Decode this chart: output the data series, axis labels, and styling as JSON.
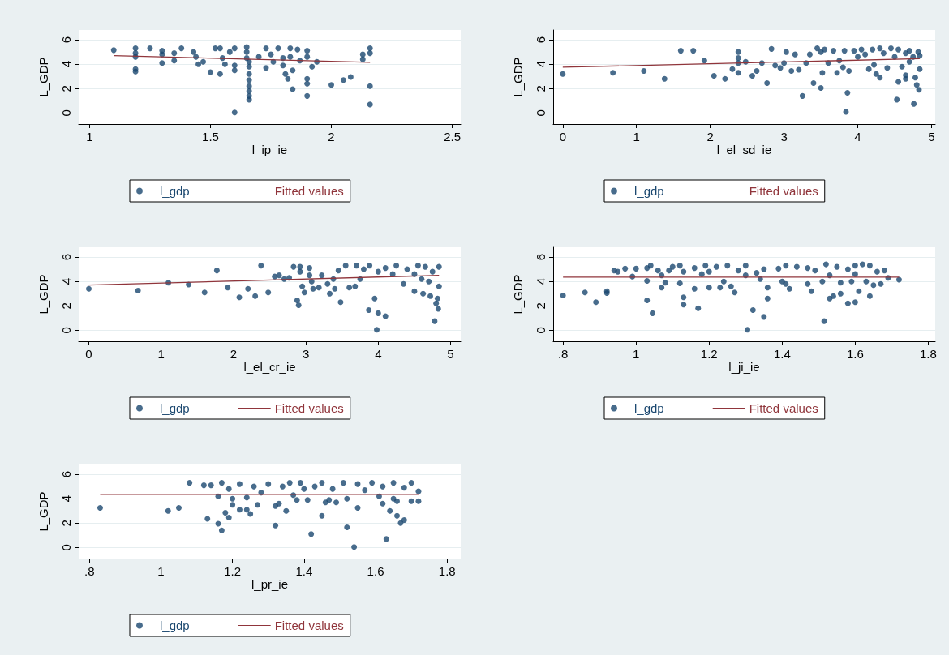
{
  "chart_data": [
    {
      "type": "scatter",
      "xlabel": "l_ip_ie",
      "ylabel": "L_GDP",
      "xlim": [
        0.955,
        2.535
      ],
      "xticks": [
        1,
        1.5,
        2,
        2.5
      ],
      "ylim": [
        -0.9,
        6.8
      ],
      "yticks": [
        0,
        2,
        4,
        6
      ],
      "grid": "y",
      "legend": "bottom",
      "marker": "circle",
      "series": [
        {
          "name": "l_gdp",
          "type": "scatter",
          "color": "#1a476f",
          "x": [
            1.1,
            1.19,
            1.19,
            1.19,
            1.19,
            1.19,
            1.25,
            1.3,
            1.3,
            1.3,
            1.35,
            1.35,
            1.38,
            1.43,
            1.44,
            1.45,
            1.47,
            1.5,
            1.52,
            1.54,
            1.54,
            1.55,
            1.56,
            1.58,
            1.6,
            1.6,
            1.6,
            1.6,
            1.65,
            1.65,
            1.65,
            1.66,
            1.66,
            1.66,
            1.66,
            1.66,
            1.66,
            1.66,
            1.66,
            1.7,
            1.73,
            1.73,
            1.75,
            1.76,
            1.78,
            1.8,
            1.8,
            1.81,
            1.82,
            1.83,
            1.83,
            1.84,
            1.84,
            1.86,
            1.87,
            1.9,
            1.9,
            1.9,
            1.9,
            1.9,
            1.92,
            1.94,
            2.0,
            2.05,
            2.08,
            2.13,
            2.13,
            2.16,
            2.16,
            2.16,
            2.16
          ],
          "values": [
            5.15,
            5.3,
            4.9,
            4.6,
            3.6,
            3.4,
            5.3,
            5.1,
            4.8,
            4.1,
            4.9,
            4.3,
            5.3,
            5.0,
            4.6,
            4.0,
            4.2,
            3.35,
            5.3,
            5.3,
            3.2,
            4.5,
            4.0,
            5.0,
            5.3,
            3.9,
            3.5,
            0.05,
            5.4,
            5.0,
            4.5,
            4.2,
            3.8,
            3.2,
            2.7,
            2.2,
            1.8,
            1.4,
            1.1,
            4.6,
            5.3,
            3.7,
            4.8,
            4.2,
            5.3,
            4.5,
            3.9,
            3.2,
            2.8,
            5.3,
            4.6,
            3.5,
            1.95,
            5.2,
            4.3,
            5.1,
            4.6,
            2.8,
            2.4,
            1.4,
            3.8,
            4.2,
            2.3,
            2.7,
            2.95,
            4.8,
            4.4,
            5.3,
            4.9,
            2.2,
            0.7
          ]
        },
        {
          "name": "Fitted values",
          "type": "line",
          "marker": "none",
          "color": "#90353b",
          "x": [
            1.1,
            2.16
          ],
          "values": [
            4.7,
            4.15
          ]
        }
      ]
    },
    {
      "type": "scatter",
      "xlabel": "l_el_sd_ie",
      "ylabel": "L_GDP",
      "xlim": [
        -0.13,
        5.05
      ],
      "xticks": [
        0,
        1,
        2,
        3,
        4,
        5
      ],
      "ylim": [
        -0.9,
        6.8
      ],
      "yticks": [
        0,
        2,
        4,
        6
      ],
      "grid": "y",
      "legend": "bottom",
      "marker": "circle",
      "series": [
        {
          "name": "l_gdp",
          "type": "scatter",
          "color": "#1a476f",
          "x": [
            0,
            0.68,
            1.1,
            1.38,
            1.6,
            1.77,
            1.92,
            2.05,
            2.2,
            2.3,
            2.38,
            2.38,
            2.38,
            2.38,
            2.48,
            2.57,
            2.63,
            2.7,
            2.77,
            2.83,
            2.88,
            2.95,
            3.0,
            3.03,
            3.1,
            3.15,
            3.2,
            3.25,
            3.3,
            3.35,
            3.4,
            3.45,
            3.5,
            3.5,
            3.52,
            3.55,
            3.6,
            3.67,
            3.72,
            3.75,
            3.8,
            3.82,
            3.84,
            3.86,
            3.88,
            3.95,
            4.0,
            4.05,
            4.1,
            4.15,
            4.2,
            4.22,
            4.25,
            4.3,
            4.3,
            4.35,
            4.4,
            4.45,
            4.5,
            4.53,
            4.55,
            4.55,
            4.6,
            4.65,
            4.65,
            4.65,
            4.7,
            4.7,
            4.75,
            4.76,
            4.78,
            4.8,
            4.82,
            4.83,
            4.84,
            4.84
          ],
          "values": [
            3.2,
            3.3,
            3.45,
            2.8,
            5.1,
            5.1,
            4.3,
            3.05,
            2.8,
            3.6,
            5.0,
            4.5,
            4.1,
            3.3,
            4.2,
            3.05,
            3.45,
            4.1,
            2.45,
            5.25,
            3.9,
            3.7,
            4.1,
            5.0,
            3.45,
            4.8,
            3.55,
            1.4,
            4.1,
            4.8,
            2.45,
            5.3,
            5.0,
            2.05,
            3.3,
            5.2,
            4.1,
            5.1,
            3.3,
            4.3,
            3.75,
            5.1,
            0.1,
            1.65,
            3.45,
            5.1,
            4.6,
            5.2,
            4.8,
            3.6,
            5.2,
            3.95,
            3.2,
            5.3,
            2.9,
            4.9,
            3.7,
            5.3,
            4.6,
            1.1,
            2.55,
            5.2,
            3.8,
            4.9,
            3.1,
            2.8,
            5.1,
            4.2,
            4.6,
            0.75,
            2.9,
            2.3,
            5.0,
            1.9,
            3.6,
            4.7
          ]
        },
        {
          "name": "Fitted values",
          "type": "line",
          "marker": "none",
          "color": "#90353b",
          "x": [
            0,
            4.84
          ],
          "values": [
            3.75,
            4.45
          ]
        }
      ]
    },
    {
      "type": "scatter",
      "xlabel": "l_el_cr_ie",
      "ylabel": "L_GDP",
      "xlim": [
        -0.14,
        5.14
      ],
      "xticks": [
        0,
        1,
        2,
        3,
        4,
        5
      ],
      "ylim": [
        -0.9,
        6.8
      ],
      "yticks": [
        0,
        2,
        4,
        6
      ],
      "grid": "y",
      "legend": "bottom",
      "marker": "circle",
      "series": [
        {
          "name": "l_gdp",
          "type": "scatter",
          "color": "#1a476f",
          "x": [
            0,
            0.68,
            1.1,
            1.38,
            1.6,
            1.77,
            1.92,
            2.08,
            2.2,
            2.3,
            2.38,
            2.48,
            2.57,
            2.63,
            2.7,
            2.77,
            2.83,
            2.88,
            2.9,
            2.92,
            2.92,
            2.95,
            2.98,
            3.05,
            3.05,
            3.08,
            3.1,
            3.18,
            3.22,
            3.3,
            3.33,
            3.38,
            3.4,
            3.48,
            3.45,
            3.55,
            3.6,
            3.68,
            3.7,
            3.75,
            3.8,
            3.87,
            3.88,
            3.95,
            3.98,
            4.0,
            4.0,
            4.1,
            4.1,
            4.2,
            4.25,
            4.35,
            4.4,
            4.5,
            4.5,
            4.55,
            4.6,
            4.62,
            4.65,
            4.7,
            4.72,
            4.75,
            4.78,
            4.8,
            4.82,
            4.83,
            4.84,
            4.84
          ],
          "values": [
            3.4,
            3.25,
            3.9,
            3.75,
            3.1,
            4.9,
            3.5,
            2.7,
            3.4,
            2.8,
            5.3,
            3.1,
            4.4,
            4.5,
            4.2,
            4.3,
            5.2,
            2.45,
            2.05,
            5.2,
            4.8,
            3.6,
            3.1,
            5.1,
            4.5,
            4.0,
            3.4,
            3.5,
            4.5,
            3.8,
            3.0,
            4.2,
            3.4,
            2.3,
            4.9,
            5.3,
            3.5,
            3.6,
            5.3,
            4.2,
            5.0,
            1.65,
            5.3,
            2.6,
            0.05,
            1.4,
            4.8,
            1.15,
            5.1,
            4.6,
            5.3,
            3.8,
            5.0,
            4.6,
            3.2,
            5.3,
            4.2,
            3.0,
            5.2,
            4.0,
            2.8,
            4.8,
            0.75,
            2.2,
            2.6,
            1.75,
            3.6,
            5.2
          ]
        },
        {
          "name": "Fitted values",
          "type": "line",
          "marker": "none",
          "color": "#90353b",
          "x": [
            0,
            4.84
          ],
          "values": [
            3.7,
            4.5
          ]
        }
      ]
    },
    {
      "type": "scatter",
      "xlabel": "l_ji_ie",
      "ylabel": "L_GDP",
      "xlim": [
        0.773,
        1.819
      ],
      "xticks": [
        {
          "value": 0.8,
          "label": ".8"
        },
        1,
        1.2,
        1.4,
        1.6,
        1.8
      ],
      "ylim": [
        -0.9,
        6.8
      ],
      "yticks": [
        0,
        2,
        4,
        6
      ],
      "grid": "y",
      "legend": "bottom",
      "marker": "circle",
      "series": [
        {
          "name": "l_gdp",
          "type": "scatter",
          "color": "#1a476f",
          "x": [
            0.8,
            0.86,
            0.89,
            0.92,
            0.92,
            0.94,
            0.95,
            0.97,
            0.99,
            1.0,
            1.03,
            1.03,
            1.03,
            1.04,
            1.045,
            1.06,
            1.07,
            1.07,
            1.08,
            1.09,
            1.1,
            1.12,
            1.12,
            1.13,
            1.13,
            1.13,
            1.16,
            1.16,
            1.17,
            1.18,
            1.19,
            1.2,
            1.2,
            1.22,
            1.23,
            1.24,
            1.25,
            1.26,
            1.27,
            1.28,
            1.3,
            1.3,
            1.305,
            1.32,
            1.33,
            1.34,
            1.35,
            1.35,
            1.36,
            1.36,
            1.39,
            1.4,
            1.41,
            1.41,
            1.42,
            1.44,
            1.47,
            1.47,
            1.48,
            1.49,
            1.51,
            1.515,
            1.52,
            1.53,
            1.53,
            1.54,
            1.55,
            1.56,
            1.56,
            1.58,
            1.58,
            1.59,
            1.6,
            1.6,
            1.6,
            1.61,
            1.62,
            1.63,
            1.64,
            1.64,
            1.65,
            1.66,
            1.67,
            1.68,
            1.69,
            1.72
          ],
          "values": [
            2.85,
            3.1,
            2.3,
            3.2,
            3.05,
            4.9,
            4.8,
            5.05,
            4.4,
            5.05,
            5.1,
            4.05,
            2.45,
            5.3,
            1.4,
            4.9,
            4.5,
            3.5,
            3.9,
            4.9,
            5.2,
            5.3,
            3.85,
            4.8,
            2.7,
            2.1,
            5.1,
            3.4,
            1.8,
            4.6,
            5.3,
            4.8,
            3.5,
            5.2,
            3.5,
            4.0,
            5.3,
            3.6,
            3.1,
            4.9,
            5.3,
            4.5,
            0.05,
            1.65,
            4.7,
            4.2,
            5.0,
            1.1,
            2.6,
            3.5,
            5.05,
            4.0,
            3.8,
            5.3,
            3.4,
            5.2,
            5.1,
            3.8,
            3.2,
            4.9,
            4.0,
            0.75,
            5.4,
            4.5,
            2.6,
            2.8,
            5.2,
            3.9,
            3.0,
            5.0,
            2.2,
            4.0,
            2.3,
            4.6,
            5.3,
            3.2,
            5.4,
            4.0,
            5.3,
            2.8,
            3.7,
            4.8,
            3.8,
            4.9,
            4.3,
            4.15
          ]
        },
        {
          "name": "Fitted values",
          "type": "line",
          "marker": "none",
          "color": "#90353b",
          "x": [
            0.8,
            1.72
          ],
          "values": [
            4.35,
            4.35
          ]
        }
      ]
    },
    {
      "type": "scatter",
      "xlabel": "l_pr_ie",
      "ylabel": "L_GDP",
      "xlim": [
        0.77,
        1.838
      ],
      "xticks": [
        {
          "value": 0.8,
          "label": ".8"
        },
        1,
        1.2,
        1.4,
        1.6,
        1.8
      ],
      "ylim": [
        -0.9,
        6.8
      ],
      "yticks": [
        0,
        2,
        4,
        6
      ],
      "grid": "y",
      "legend": "bottom",
      "marker": "circle",
      "series": [
        {
          "name": "l_gdp",
          "type": "scatter",
          "color": "#1a476f",
          "x": [
            0.83,
            1.02,
            1.05,
            1.08,
            1.12,
            1.14,
            1.13,
            1.16,
            1.16,
            1.17,
            1.17,
            1.18,
            1.19,
            1.19,
            1.2,
            1.2,
            1.22,
            1.22,
            1.24,
            1.24,
            1.25,
            1.26,
            1.27,
            1.28,
            1.3,
            1.32,
            1.32,
            1.33,
            1.34,
            1.35,
            1.36,
            1.37,
            1.38,
            1.39,
            1.4,
            1.41,
            1.42,
            1.43,
            1.45,
            1.45,
            1.46,
            1.47,
            1.48,
            1.49,
            1.51,
            1.52,
            1.52,
            1.54,
            1.55,
            1.55,
            1.57,
            1.59,
            1.61,
            1.62,
            1.62,
            1.63,
            1.64,
            1.65,
            1.65,
            1.66,
            1.66,
            1.67,
            1.68,
            1.68,
            1.7,
            1.7,
            1.72,
            1.72
          ],
          "values": [
            3.25,
            3.0,
            3.25,
            5.3,
            5.1,
            5.1,
            2.35,
            4.2,
            1.95,
            1.4,
            5.3,
            2.85,
            2.45,
            4.8,
            4.0,
            3.5,
            5.2,
            3.1,
            3.1,
            4.1,
            2.75,
            5.0,
            3.5,
            4.5,
            5.2,
            3.4,
            1.8,
            3.6,
            5.0,
            3.0,
            5.3,
            4.3,
            3.9,
            5.3,
            4.8,
            3.9,
            1.1,
            5.0,
            5.3,
            2.6,
            3.7,
            3.9,
            4.8,
            3.7,
            5.3,
            4.0,
            1.65,
            0.05,
            3.25,
            5.2,
            4.7,
            5.3,
            4.2,
            5.0,
            3.6,
            0.7,
            3.0,
            5.3,
            4.0,
            2.6,
            3.8,
            2.0,
            2.25,
            4.9,
            5.3,
            3.8,
            4.6,
            3.8
          ]
        },
        {
          "name": "Fitted values",
          "type": "line",
          "marker": "none",
          "color": "#90353b",
          "x": [
            0.83,
            1.72
          ],
          "values": [
            4.35,
            4.35
          ]
        }
      ]
    }
  ]
}
